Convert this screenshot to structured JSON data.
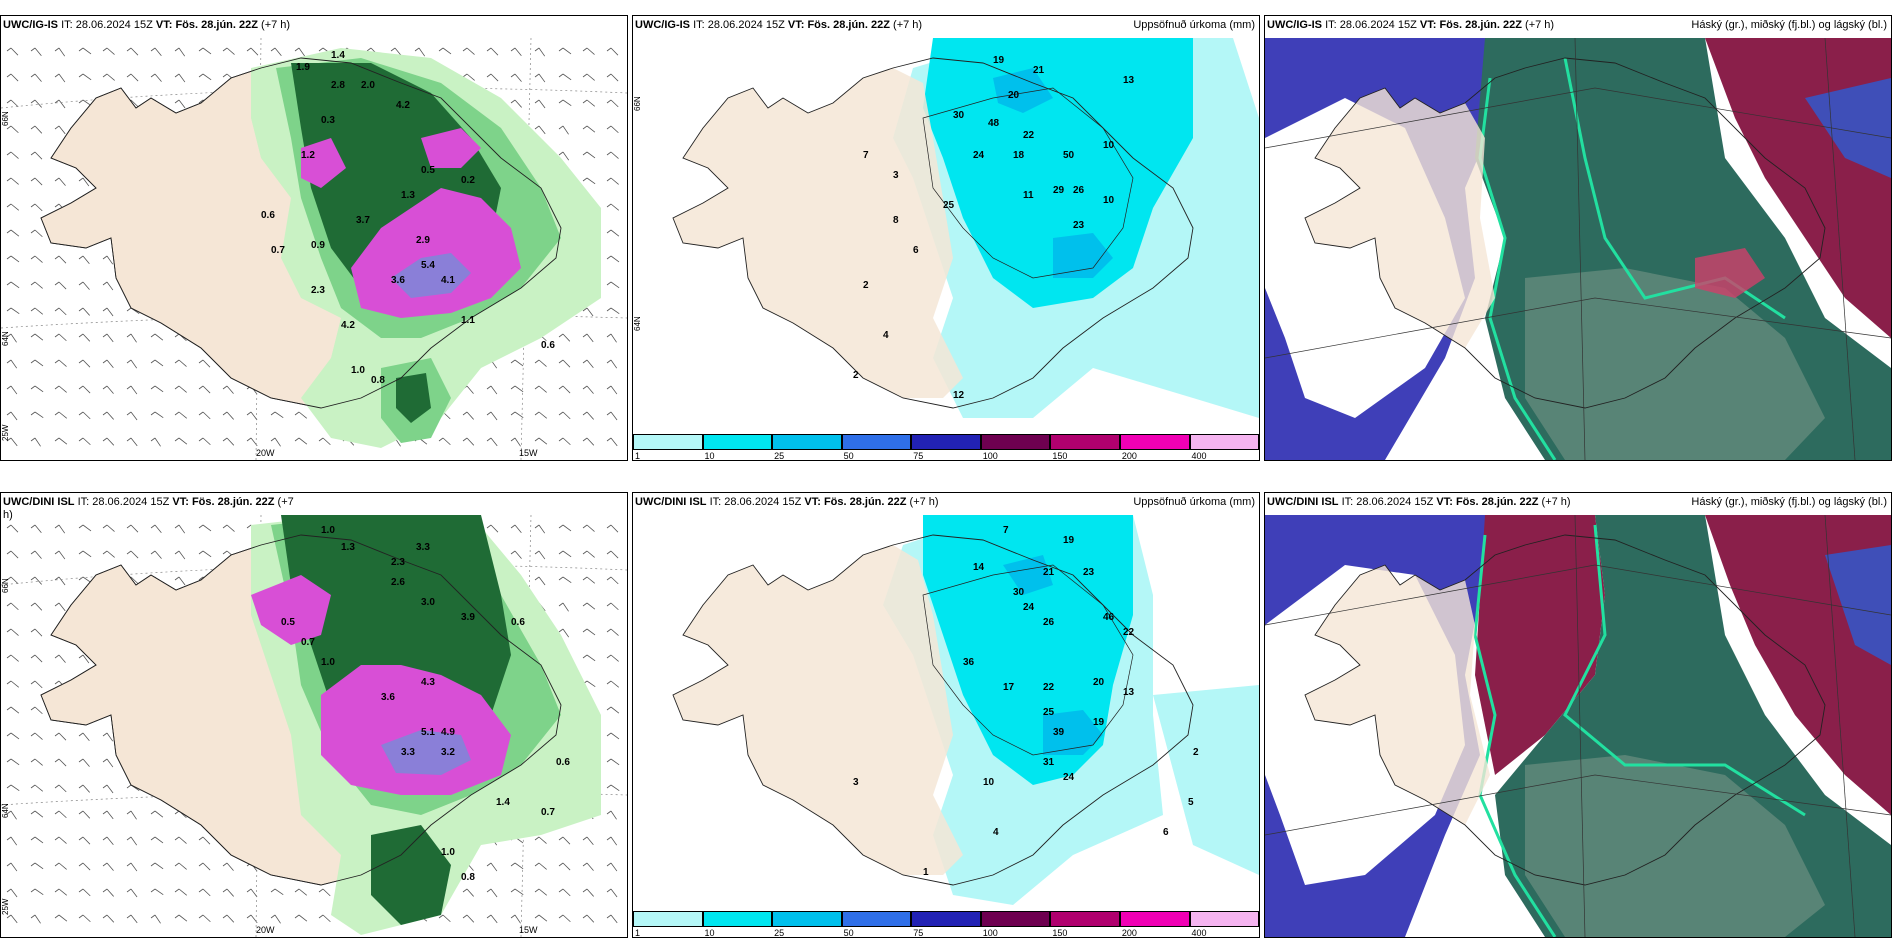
{
  "panels": [
    {
      "id": "p1",
      "model": "UWC/IG-IS",
      "it_label": "IT:",
      "it": "28.06.2024 15Z",
      "vt_label": "VT: Fös. 28.jún. 22Z",
      "lead": "(+7 h)",
      "right_title": ""
    },
    {
      "id": "p2",
      "model": "UWC/IG-IS",
      "it_label": "IT:",
      "it": "28.06.2024 15Z",
      "vt_label": "VT: Fös. 28.jún. 22Z",
      "lead": "(+7 h)",
      "right_title": "Uppsöfnuð úrkoma (mm)"
    },
    {
      "id": "p3",
      "model": "UWC/IG-IS",
      "it_label": "IT:",
      "it": "28.06.2024 15Z",
      "vt_label": "VT: Fös. 28.jún. 22Z",
      "lead": "(+7 h)",
      "right_title": "Háský (gr.), miðský (fj.bl.) og lágský (bl.)"
    },
    {
      "id": "p4",
      "model": "UWC/DINI ISL",
      "it_label": "IT:",
      "it": "28.06.2024 15Z",
      "vt_label": "VT: Fös. 28.jún. 22Z",
      "lead": "(+7",
      "lead2": "h)",
      "right_title": ""
    },
    {
      "id": "p5",
      "model": "UWC/DINI ISL",
      "it_label": "IT:",
      "it": "28.06.2024 15Z",
      "vt_label": "VT: Fös. 28.jún. 22Z",
      "lead": "(+7 h)",
      "right_title": "Uppsöfnuð úrkoma (mm)"
    },
    {
      "id": "p6",
      "model": "UWC/DINI ISL",
      "it_label": "IT:",
      "it": "28.06.2024 15Z",
      "vt_label": "VT: Fös. 28.jún. 22Z",
      "lead": "(+7 h)",
      "right_title": "Háský (gr.), miðský (fj.bl.) og lágský (bl.)"
    }
  ],
  "axes": {
    "lat_66": "66N",
    "lat_64": "64N",
    "lat_25w": "25W",
    "lon_20w": "20W",
    "lon_15w": "15W"
  },
  "scale": {
    "ticks": [
      "1",
      "10",
      "25",
      "50",
      "75",
      "100",
      "150",
      "200",
      "400"
    ],
    "colors": [
      "#b4f7f7",
      "#00e6f0",
      "#00c0ec",
      "#2f6fe8",
      "#2222b4",
      "#6e0050",
      "#b0006e",
      "#f000b4",
      "#f5b4f0"
    ]
  },
  "colors": {
    "land": "#f5e6d6",
    "green_light": "#c9f2c4",
    "green_mid": "#7ed38a",
    "green_dark": "#1f6b35",
    "magenta": "#d84fd6",
    "violet": "#8a7fd8",
    "cyan_light": "#b4f7f7",
    "cyan": "#00e6f0",
    "navy": "#2f3fa8",
    "maroon": "#8a1f4a",
    "teal": "#2d6b5e"
  },
  "values": {
    "p1": [
      "1.9",
      "1.4",
      "2.8",
      "2.0",
      "0.3",
      "4.2",
      "1.2",
      "0.5",
      "1.3",
      "0.2",
      "0.6",
      "3.7",
      "0.9",
      "2.9",
      "5.4",
      "3.6",
      "4.1",
      "2.3",
      "0.7",
      "4.2",
      "1.0",
      "0.8",
      "0.6",
      "1.1"
    ],
    "p2": [
      "19",
      "21",
      "13",
      "20",
      "30",
      "48",
      "22",
      "24",
      "18",
      "11",
      "25",
      "29",
      "26",
      "50",
      "23",
      "10",
      "8",
      "7",
      "2",
      "4",
      "2",
      "3",
      "6",
      "10",
      "12"
    ],
    "p4": [
      "1.0",
      "1.3",
      "2.3",
      "3.3",
      "2.6",
      "3.0",
      "3.9",
      "0.6",
      "0.5",
      "0.7",
      "1.0",
      "4.3",
      "3.6",
      "5.1",
      "4.9",
      "3.3",
      "3.2",
      "1.0",
      "0.8",
      "1.4",
      "0.7",
      "0.6"
    ],
    "p5": [
      "19",
      "7",
      "14",
      "21",
      "23",
      "30",
      "24",
      "26",
      "46",
      "22",
      "17",
      "36",
      "22",
      "20",
      "19",
      "13",
      "25",
      "39",
      "31",
      "24",
      "10",
      "2",
      "5",
      "6",
      "4",
      "3",
      "1"
    ]
  }
}
